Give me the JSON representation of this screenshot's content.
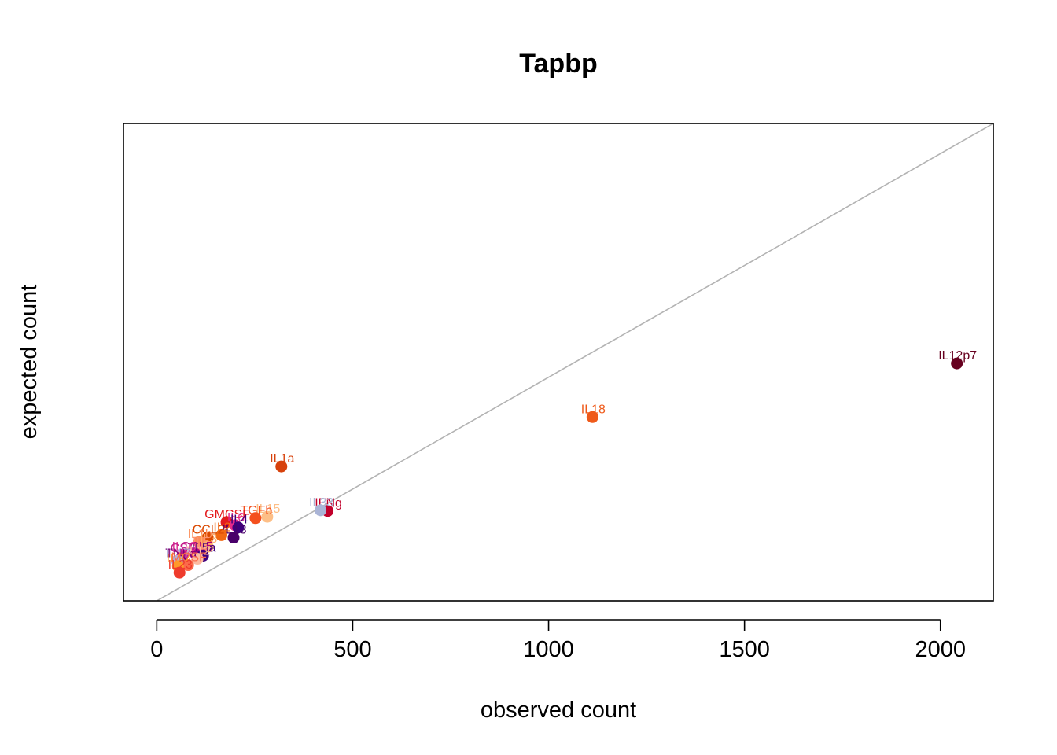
{
  "chart_data": {
    "type": "scatter",
    "title": "Tapbp",
    "xlabel": "observed count",
    "ylabel": "expected count",
    "xlim": [
      -85,
      2135
    ],
    "ylim": [
      0,
      2135
    ],
    "x_ticks": [
      0,
      500,
      1000,
      1500,
      2000
    ],
    "x_tick_labels": [
      "0",
      "500",
      "1000",
      "1500",
      "2000"
    ],
    "y_ticks": [],
    "reference_line": "y = x",
    "reference_line_color": "#b3b3b3",
    "grid": false,
    "legend": "none",
    "points": [
      {
        "label": "IL12p7",
        "x": 2042,
        "y": 1062,
        "color": "#67001f"
      },
      {
        "label": "IL18",
        "x": 1112,
        "y": 822,
        "color": "#ef5a1a"
      },
      {
        "label": "IL1a",
        "x": 318,
        "y": 601,
        "color": "#d7410b"
      },
      {
        "label": "IFNg",
        "x": 436,
        "y": 402,
        "color": "#c1002b"
      },
      {
        "label": "IL33",
        "x": 418,
        "y": 405,
        "color": "#aab4d6"
      },
      {
        "label": "IL15",
        "x": 282,
        "y": 376,
        "color": "#fdbf87"
      },
      {
        "label": "TGFb",
        "x": 252,
        "y": 370,
        "color": "#f4501e"
      },
      {
        "label": "GMCSF",
        "x": 178,
        "y": 352,
        "color": "#e31a1c"
      },
      {
        "label": "IL6",
        "x": 200,
        "y": 338,
        "color": "#e7298a"
      },
      {
        "label": "IL4",
        "x": 208,
        "y": 328,
        "color": "#3f007d"
      },
      {
        "label": "IL13",
        "x": 196,
        "y": 283,
        "color": "#49006a"
      },
      {
        "label": "IL2",
        "x": 165,
        "y": 294,
        "color": "#f16913"
      },
      {
        "label": "CCL2",
        "x": 130,
        "y": 283,
        "color": "#d94801"
      },
      {
        "label": "IL1b",
        "x": 108,
        "y": 264,
        "color": "#fc8d59"
      },
      {
        "label": "IL3",
        "x": 130,
        "y": 242,
        "color": "#fdae6b"
      },
      {
        "label": "IL5",
        "x": 112,
        "y": 229,
        "color": "#fc9272"
      },
      {
        "label": "CCL5",
        "x": 100,
        "y": 208,
        "color": "#ae017e"
      },
      {
        "label": "IL5a",
        "x": 118,
        "y": 202,
        "color": "#3f007d"
      },
      {
        "label": "IL10",
        "x": 68,
        "y": 208,
        "color": "#dd3497"
      },
      {
        "label": "CSF",
        "x": 65,
        "y": 200,
        "color": "#c51b8a"
      },
      {
        "label": "IL12",
        "x": 104,
        "y": 188,
        "color": "#fcbba1"
      },
      {
        "label": "TNFa",
        "x": 60,
        "y": 178,
        "color": "#7a0177"
      },
      {
        "label": "IL17",
        "x": 52,
        "y": 178,
        "color": "#b4b0d8"
      },
      {
        "label": "MCSF",
        "x": 80,
        "y": 160,
        "color": "#fb6a4a"
      },
      {
        "label": "IL27",
        "x": 54,
        "y": 155,
        "color": "#fe9929"
      },
      {
        "label": "IL23",
        "x": 58,
        "y": 126,
        "color": "#ef3b2c"
      }
    ]
  }
}
